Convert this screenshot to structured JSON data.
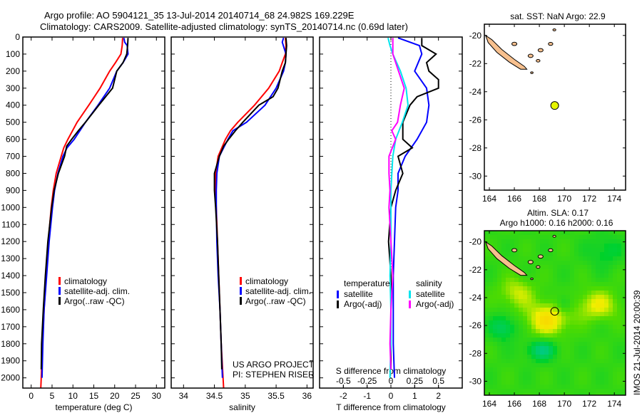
{
  "titles": {
    "line1": "Argo profile: AO 5904121_35 13-Jul-2014 20140714_68 24.982S 169.229E",
    "line2": "Climatology: CARS2009. Satellite-adjusted climatology: synTS_20140714.nc (0.69d later)"
  },
  "credit": {
    "line1": "US ARGO PROJECT",
    "line2": "PI: STEPHEN RISER"
  },
  "stamp": "IMOS 21-Jul-2014 20:00:39",
  "colors": {
    "climatology": "#ff0000",
    "satellite": "#0000ff",
    "argo": "#000000",
    "sal_satellite": "#00e5ee",
    "sal_argo": "#ff00ff",
    "land": "#f7c08e",
    "float_marker": "#e5f500"
  },
  "chart_data": [
    {
      "type": "line",
      "title": "",
      "xlabel": "temperature (deg C)",
      "ylabel": "",
      "xlim": [
        -2,
        32
      ],
      "ylim": [
        2060,
        0
      ],
      "xticks": [
        0,
        5,
        10,
        15,
        20,
        25,
        30
      ],
      "yticks": [
        0,
        100,
        200,
        300,
        400,
        500,
        600,
        700,
        800,
        900,
        1000,
        1100,
        1200,
        1300,
        1400,
        1500,
        1600,
        1700,
        1800,
        1900,
        2000
      ],
      "legend": [
        "climatology",
        "satellite-adj. clim.",
        "Argo(..raw -QC)"
      ],
      "legend_position": "center",
      "series": [
        {
          "name": "climatology",
          "color": "#ff0000",
          "depth": [
            5,
            50,
            100,
            150,
            200,
            300,
            400,
            500,
            600,
            650,
            700,
            800,
            900,
            1000,
            1200,
            1400,
            1600,
            1800,
            2000,
            2060
          ],
          "values": [
            21.9,
            21.8,
            21.5,
            20.2,
            18.8,
            16.5,
            13.8,
            11.0,
            8.8,
            7.8,
            7.2,
            6.0,
            5.3,
            4.8,
            4.1,
            3.6,
            3.1,
            2.7,
            2.4,
            2.3
          ]
        },
        {
          "name": "satellite-adj. clim.",
          "color": "#0000ff",
          "depth": [
            5,
            30,
            50,
            100,
            150,
            200,
            300,
            400,
            500,
            600,
            650,
            700,
            800,
            900,
            1000,
            1200,
            1400,
            1600,
            1800,
            2000
          ],
          "values": [
            22.2,
            22.4,
            23.0,
            23.2,
            22.0,
            20.5,
            18.8,
            16.0,
            13.0,
            10.3,
            8.6,
            7.6,
            6.4,
            5.6,
            5.1,
            4.3,
            3.7,
            3.1,
            2.8,
            2.6
          ]
        },
        {
          "name": "Argo(..raw -QC)",
          "color": "#000000",
          "depth": [
            5,
            50,
            100,
            150,
            200,
            300,
            400,
            500,
            550,
            600,
            640,
            700,
            800,
            900,
            1000,
            1200,
            1400,
            1600,
            1800,
            1950
          ],
          "values": [
            23.2,
            23.1,
            22.9,
            22.0,
            20.5,
            19.5,
            16.2,
            13.0,
            11.3,
            9.7,
            8.5,
            8.0,
            6.5,
            5.5,
            4.9,
            4.0,
            3.4,
            2.9,
            2.5,
            2.4
          ]
        }
      ]
    },
    {
      "type": "line",
      "title": "",
      "xlabel": "salinity",
      "ylabel": "",
      "xlim": [
        33.8,
        36.1
      ],
      "ylim": [
        2060,
        0
      ],
      "xticks": [
        34,
        34.5,
        35,
        35.5,
        36
      ],
      "legend": [
        "climatology",
        "satellite-adj. clim.",
        "Argo(..raw -QC)"
      ],
      "legend_position": "center-right",
      "series": [
        {
          "name": "climatology",
          "color": "#ff0000",
          "depth": [
            5,
            50,
            100,
            150,
            200,
            300,
            400,
            500,
            550,
            600,
            650,
            700,
            800,
            900,
            1000,
            1200,
            1400,
            1600,
            1800,
            2000,
            2060
          ],
          "values": [
            35.65,
            35.66,
            35.65,
            35.6,
            35.55,
            35.38,
            35.15,
            34.88,
            34.76,
            34.68,
            34.62,
            34.56,
            34.52,
            34.52,
            34.53,
            34.55,
            34.57,
            34.59,
            34.61,
            34.64,
            34.65
          ]
        },
        {
          "name": "satellite-adj. clim.",
          "color": "#0000ff",
          "depth": [
            5,
            30,
            100,
            150,
            200,
            300,
            400,
            500,
            550,
            600,
            650,
            700,
            800,
            900,
            1000,
            1200,
            1400,
            1600,
            1800,
            2000
          ],
          "values": [
            35.62,
            35.6,
            35.66,
            35.65,
            35.62,
            35.5,
            35.32,
            35.02,
            34.8,
            34.72,
            34.65,
            34.58,
            34.54,
            34.53,
            34.53,
            34.54,
            34.56,
            34.59,
            34.61,
            34.63
          ]
        },
        {
          "name": "Argo(..raw -QC)",
          "color": "#000000",
          "depth": [
            5,
            50,
            100,
            150,
            200,
            300,
            350,
            400,
            500,
            550,
            600,
            640,
            700,
            800,
            900,
            1000,
            1200,
            1400,
            1600,
            1800,
            1950
          ],
          "values": [
            35.66,
            35.67,
            35.66,
            35.65,
            35.6,
            35.53,
            35.45,
            35.22,
            34.96,
            34.84,
            34.73,
            34.65,
            34.58,
            34.5,
            34.5,
            34.52,
            34.55,
            34.57,
            34.59,
            34.61,
            34.62
          ]
        }
      ]
    },
    {
      "type": "line",
      "title": "",
      "xlabel": "T difference from climatology",
      "x2label": "S difference from climatology",
      "xlim": [
        -3,
        3
      ],
      "x2lim": [
        -0.75,
        0.75
      ],
      "ylim": [
        2060,
        0
      ],
      "xticks": [
        -2,
        -1,
        0,
        1,
        2
      ],
      "x2ticks": [
        -0.5,
        -0.25,
        0,
        0.25,
        0.5
      ],
      "zero_line": "dotted",
      "legend_groups": [
        {
          "title": "temperature",
          "items": [
            "satellite",
            "Argo(-adj)"
          ]
        },
        {
          "title": "salinity",
          "items": [
            "satellite",
            "Argo(-adj)"
          ]
        }
      ],
      "series": [
        {
          "name": "temperature satellite",
          "color": "#0000ff",
          "axis": "T",
          "depth": [
            5,
            50,
            100,
            200,
            300,
            400,
            500,
            600,
            700,
            800,
            900,
            1000,
            1200,
            1400,
            1600,
            1800,
            2000
          ],
          "values": [
            0.3,
            1.2,
            1.3,
            1.0,
            1.5,
            1.6,
            1.5,
            1.1,
            0.6,
            0.3,
            0.3,
            0.2,
            0.15,
            0.1,
            0.1,
            0.1,
            0.15
          ]
        },
        {
          "name": "temperature Argo(-adj)",
          "color": "#000000",
          "axis": "T",
          "depth": [
            5,
            50,
            100,
            150,
            200,
            250,
            300,
            350,
            400,
            500,
            600,
            650,
            700,
            800,
            900,
            1000,
            1200,
            1400,
            1600,
            1800,
            1950
          ],
          "values": [
            1.3,
            1.3,
            1.9,
            1.5,
            1.6,
            2.0,
            2.0,
            1.1,
            0.8,
            0.5,
            0.5,
            0.9,
            0.3,
            0.5,
            0.2,
            0.0,
            -0.1,
            0.0,
            0.0,
            0.0,
            0.0
          ]
        },
        {
          "name": "salinity satellite",
          "color": "#00e5ee",
          "axis": "S",
          "depth": [
            5,
            50,
            100,
            200,
            300,
            400,
            500,
            600,
            700,
            800,
            900,
            1000,
            1200,
            1400,
            1600,
            1800,
            2000
          ],
          "values": [
            -0.03,
            -0.01,
            0.02,
            0.1,
            0.16,
            0.18,
            0.12,
            0.05,
            0.02,
            0.01,
            0.0,
            0.0,
            0.0,
            -0.01,
            0.0,
            0.0,
            -0.01
          ]
        },
        {
          "name": "salinity Argo(-adj)",
          "color": "#ff00ff",
          "axis": "S",
          "depth": [
            5,
            50,
            100,
            200,
            300,
            400,
            500,
            550,
            600,
            700,
            800,
            900,
            1000,
            1200,
            1400,
            1600,
            1800,
            1950
          ],
          "values": [
            0.02,
            0.02,
            0.02,
            0.08,
            0.14,
            0.1,
            0.07,
            0.01,
            0.05,
            -0.02,
            -0.02,
            -0.01,
            -0.02,
            0.0,
            0.02,
            0.0,
            -0.01,
            0.0
          ]
        }
      ]
    },
    {
      "type": "scatter",
      "title": "sat. SST: NaN Argo: 22.9",
      "xlim": [
        163.6,
        174.9
      ],
      "ylim": [
        -31,
        -19.2
      ],
      "xticks": [
        164,
        166,
        168,
        170,
        172,
        174
      ],
      "yticks": [
        -20,
        -22,
        -24,
        -26,
        -28,
        -30
      ],
      "float_position": {
        "lon": 169.229,
        "lat": -24.982
      }
    },
    {
      "type": "heatmap",
      "title": "Altim. SLA: 0.17",
      "subtitle": "Argo h1000: 0.16 h2000: 0.16",
      "xlim": [
        163.6,
        174.9
      ],
      "ylim": [
        -31,
        -19.2
      ],
      "xticks": [
        164,
        166,
        168,
        170,
        172,
        174
      ],
      "yticks": [
        -20,
        -22,
        -24,
        -26,
        -28,
        -30
      ],
      "float_position": {
        "lon": 169.229,
        "lat": -24.982
      }
    }
  ]
}
